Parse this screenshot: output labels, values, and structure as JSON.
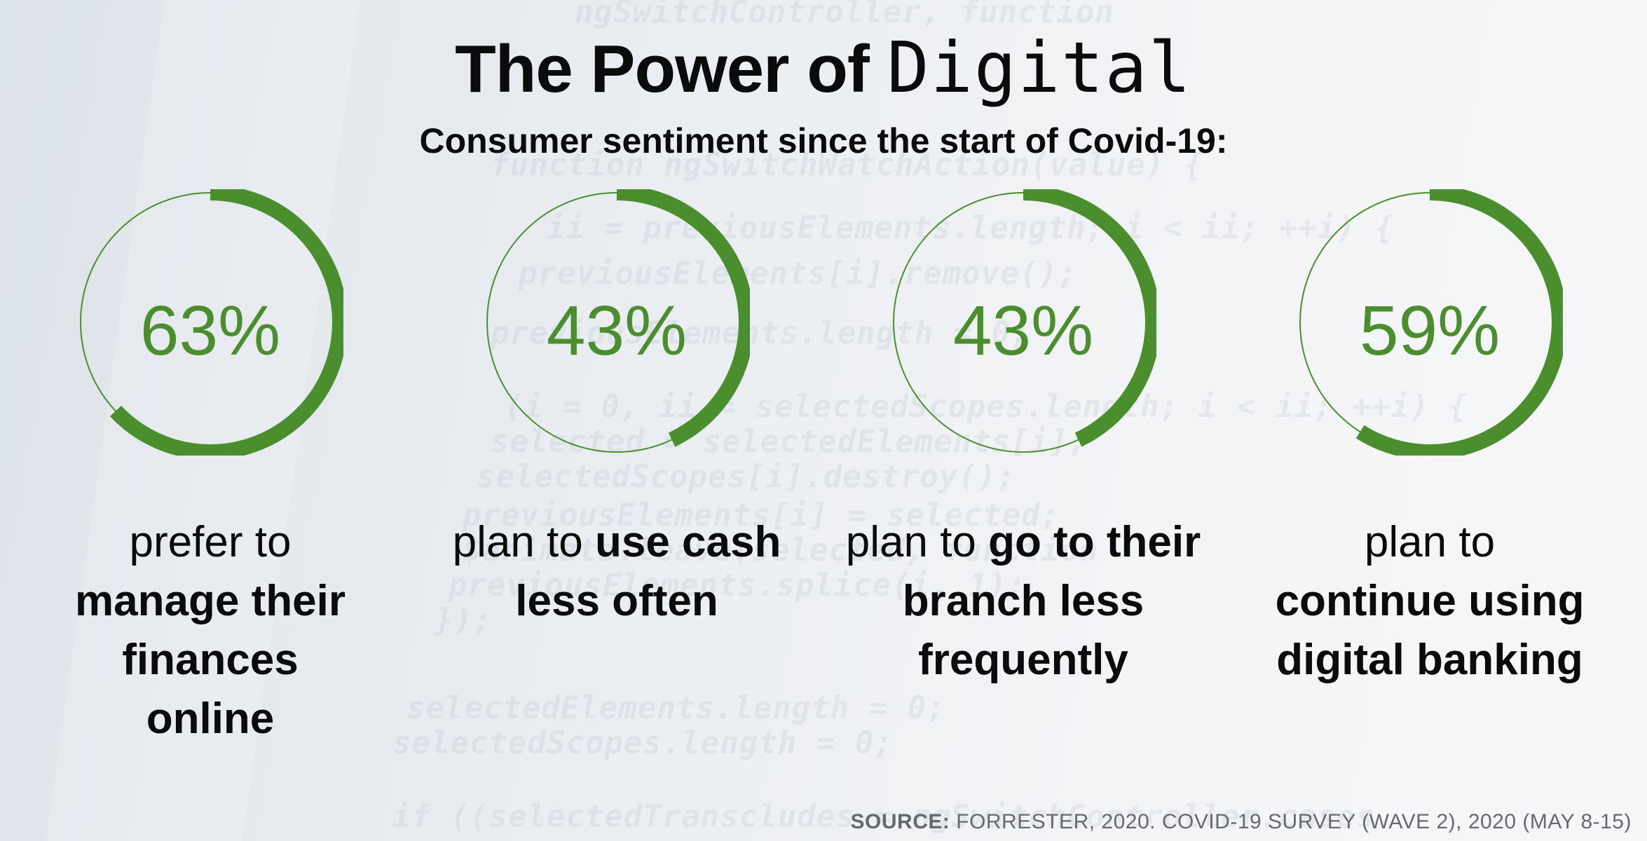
{
  "title": {
    "part1": "The Power of ",
    "part2": "Digital"
  },
  "subtitle": "Consumer sentiment since the start of Covid-19:",
  "colors": {
    "ring": "#4a8e2e",
    "text": "#0b0b0b"
  },
  "stats": [
    {
      "value": 63,
      "label": "63%",
      "lead": "prefer to",
      "bold": "manage their finances online"
    },
    {
      "value": 43,
      "label": "43%",
      "lead": "plan to ",
      "bold": "use cash less often"
    },
    {
      "value": 43,
      "label": "43%",
      "lead": "plan to ",
      "bold": "go to their branch less frequently"
    },
    {
      "value": 59,
      "label": "59%",
      "lead": "plan to",
      "bold": "continue using digital banking"
    }
  ],
  "source": {
    "label": "SOURCE:",
    "text": " FORRESTER, 2020. COVID-19 SURVEY (WAVE 2), 2020 (MAY 8-15)"
  }
}
